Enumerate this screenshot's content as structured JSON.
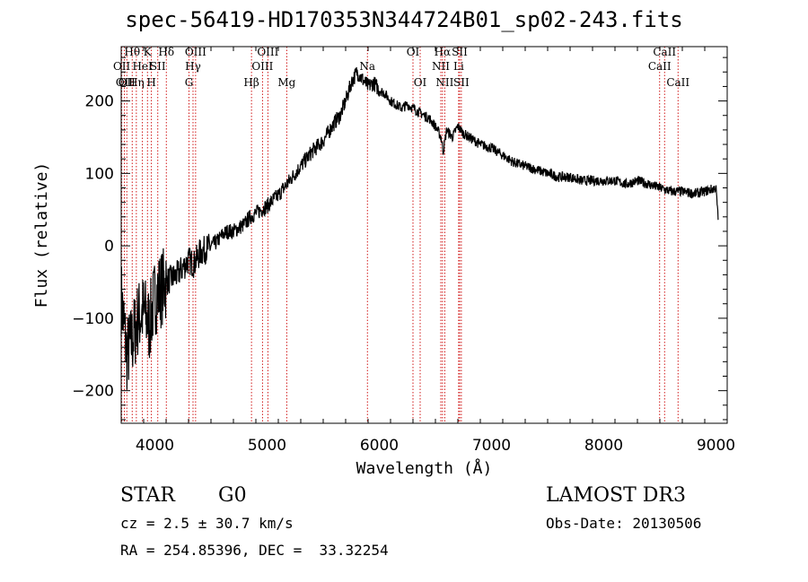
{
  "title": "spec-56419-HD170353N344724B01_sp02-243.fits",
  "footer": {
    "class_label": "STAR",
    "subclass_label": "G0",
    "cz_text": "cz = 2.5 ± 30.7 km/s",
    "radec_text": "RA = 254.85396, DEC =  33.32254",
    "survey": "LAMOST DR3",
    "obs_date": "Obs-Date: 20130506"
  },
  "chart_data": {
    "type": "line",
    "xlabel": "Wavelength (Å)",
    "ylabel": "Flux (relative)",
    "xlim": [
      3700,
      9100
    ],
    "ylim": [
      -245,
      275
    ],
    "xticks": [
      4000,
      5000,
      6000,
      7000,
      8000,
      9000
    ],
    "yticks": [
      -200,
      -100,
      0,
      100,
      200
    ],
    "grid": false,
    "series": [
      {
        "x": [
          3700,
          3750,
          3800,
          3850,
          3900,
          3950,
          4000,
          4050,
          4100,
          4150,
          4200,
          4250,
          4300,
          4350,
          4400,
          4450,
          4500,
          4550,
          4600,
          4650,
          4700,
          4750,
          4800,
          4850,
          4900,
          4950,
          5000,
          5100,
          5200,
          5300,
          5400,
          5500,
          5600,
          5650,
          5700,
          5750,
          5800,
          5850,
          5900,
          5950,
          6000,
          6050,
          6100,
          6150,
          6200,
          6250,
          6300,
          6350,
          6400,
          6450,
          6500,
          6550,
          6570,
          6600,
          6650,
          6700,
          6750,
          6800,
          6900,
          7000,
          7100,
          7200,
          7300,
          7400,
          7500,
          7600,
          7700,
          7800,
          7900,
          8000,
          8100,
          8200,
          8300,
          8400,
          8500,
          8600,
          8700,
          8800,
          8900,
          9000,
          9020
        ],
        "y": [
          -70,
          -150,
          -130,
          -100,
          -90,
          -110,
          -70,
          -60,
          -50,
          -45,
          -40,
          -30,
          -20,
          -25,
          -10,
          -5,
          0,
          5,
          15,
          20,
          20,
          25,
          30,
          40,
          45,
          50,
          55,
          70,
          90,
          110,
          130,
          145,
          170,
          180,
          200,
          225,
          240,
          230,
          220,
          225,
          215,
          210,
          200,
          195,
          190,
          195,
          190,
          185,
          180,
          175,
          165,
          150,
          130,
          160,
          150,
          165,
          155,
          150,
          140,
          135,
          125,
          115,
          110,
          105,
          100,
          95,
          95,
          90,
          90,
          90,
          90,
          85,
          90,
          85,
          80,
          75,
          75,
          72,
          75,
          80,
          35
        ]
      }
    ],
    "lines": [
      {
        "w": 3705,
        "label": "OII",
        "row": 2
      },
      {
        "w": 3728,
        "label": "OII",
        "row": 3
      },
      {
        "w": 3750,
        "label": "OII",
        "row": 3
      },
      {
        "w": 3798,
        "label": "Hθ",
        "row": 1
      },
      {
        "w": 3835,
        "label": "Hη",
        "row": 3
      },
      {
        "w": 3889,
        "label": "HeI",
        "row": 2
      },
      {
        "w": 3934,
        "label": "K",
        "row": 1
      },
      {
        "w": 3969,
        "label": "H",
        "row": 3
      },
      {
        "w": 4026,
        "label": "SII",
        "row": 2
      },
      {
        "w": 4102,
        "label": "Hδ",
        "row": 1
      },
      {
        "w": 4304,
        "label": "G",
        "row": 3
      },
      {
        "w": 4340,
        "label": "Hγ",
        "row": 2
      },
      {
        "w": 4363,
        "label": "OIII",
        "row": 1
      },
      {
        "w": 4861,
        "label": "Hβ",
        "row": 3
      },
      {
        "w": 4959,
        "label": "OIII",
        "row": 2
      },
      {
        "w": 5007,
        "label": "OIII",
        "row": 1
      },
      {
        "w": 5175,
        "label": "Mg",
        "row": 3
      },
      {
        "w": 5894,
        "label": "Na",
        "row": 2
      },
      {
        "w": 6300,
        "label": "OI",
        "row": 1
      },
      {
        "w": 6364,
        "label": "OI",
        "row": 3
      },
      {
        "w": 6548,
        "label": "NII",
        "row": 2
      },
      {
        "w": 6563,
        "label": "Hα",
        "row": 1
      },
      {
        "w": 6583,
        "label": "NII",
        "row": 3
      },
      {
        "w": 6707,
        "label": "Li",
        "row": 2
      },
      {
        "w": 6716,
        "label": "SII",
        "row": 1
      },
      {
        "w": 6731,
        "label": "SII",
        "row": 3
      },
      {
        "w": 8498,
        "label": "CaII",
        "row": 2
      },
      {
        "w": 8542,
        "label": "CaII",
        "row": 1
      },
      {
        "w": 8662,
        "label": "CaII",
        "row": 3
      }
    ],
    "colors": {
      "spectrum": "#000000",
      "lines": "#cc0000",
      "axes": "#000000"
    }
  }
}
